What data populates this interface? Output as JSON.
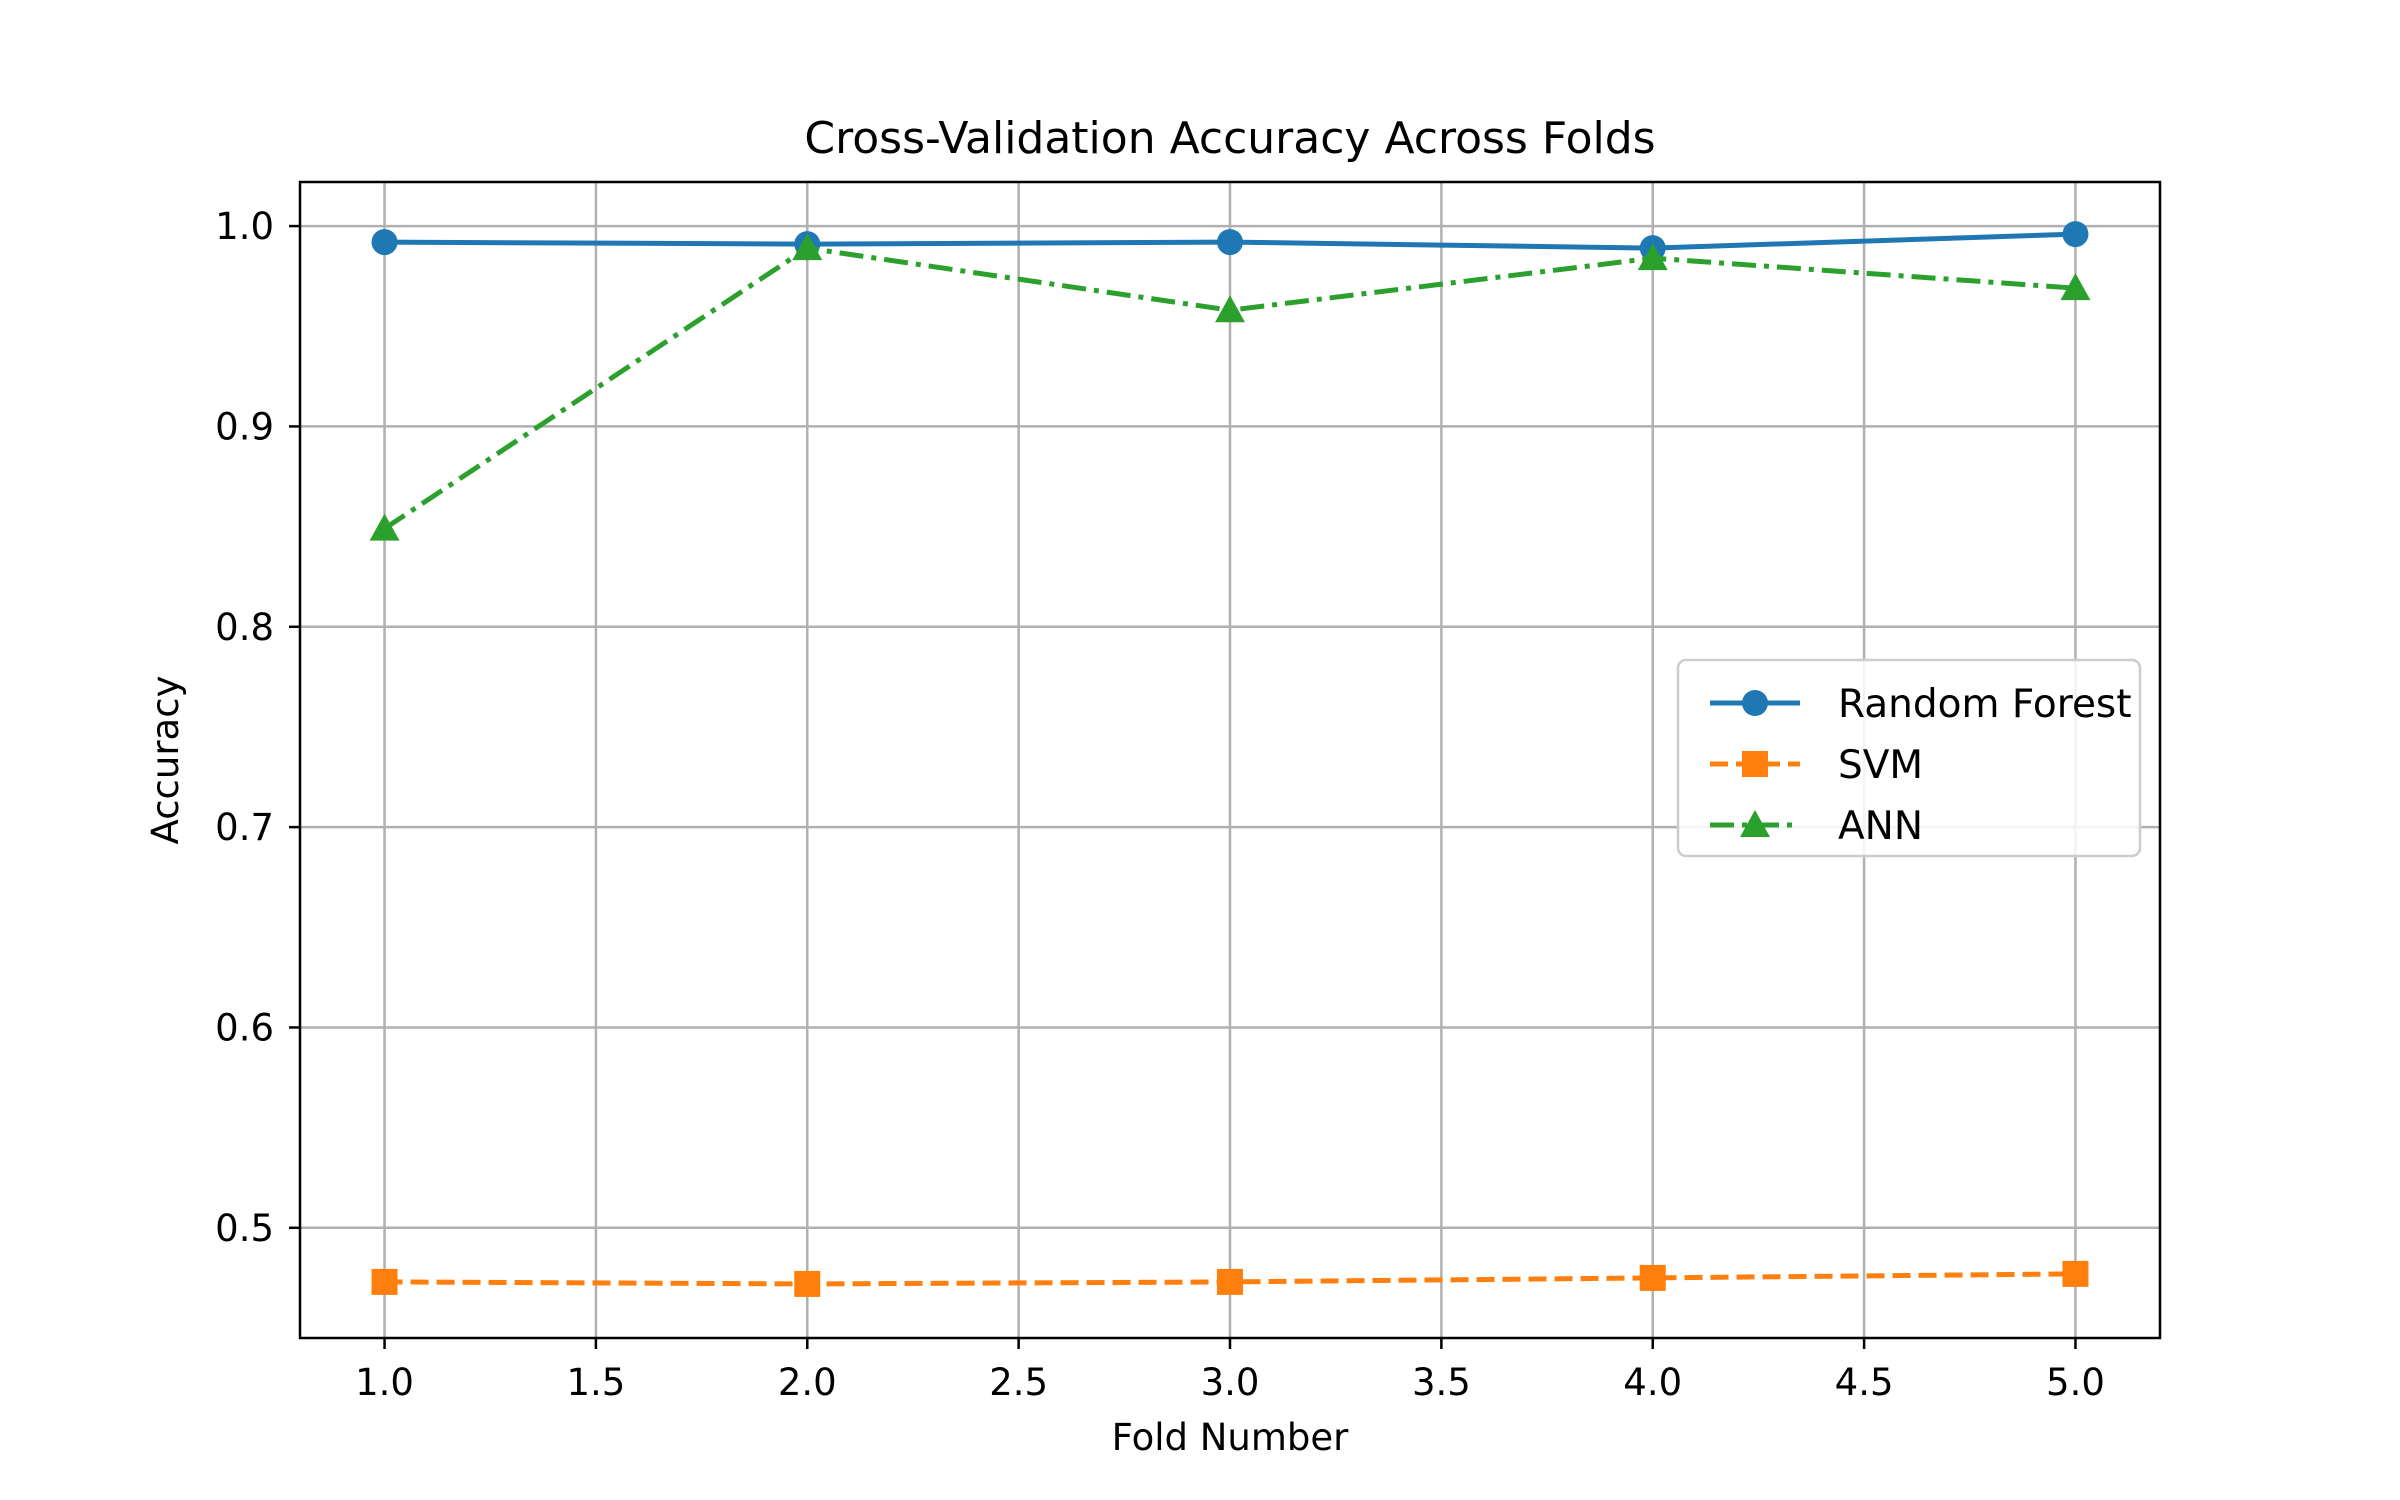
{
  "chart_data": {
    "type": "line",
    "title": "Cross-Validation Accuracy Across Folds",
    "xlabel": "Fold Number",
    "ylabel": "Accuracy",
    "xlim": [
      0.8,
      5.2
    ],
    "ylim": [
      0.445,
      1.022
    ],
    "xticks": [
      1.0,
      1.5,
      2.0,
      2.5,
      3.0,
      3.5,
      4.0,
      4.5,
      5.0
    ],
    "xtick_labels": [
      "1.0",
      "1.5",
      "2.0",
      "2.5",
      "3.0",
      "3.5",
      "4.0",
      "4.5",
      "5.0"
    ],
    "yticks": [
      0.5,
      0.6,
      0.7,
      0.8,
      0.9,
      1.0
    ],
    "ytick_labels": [
      "0.5",
      "0.6",
      "0.7",
      "0.8",
      "0.9",
      "1.0"
    ],
    "grid": true,
    "legend_position": "center-right",
    "x": [
      1,
      2,
      3,
      4,
      5
    ],
    "series": [
      {
        "name": "Random Forest",
        "values": [
          0.992,
          0.991,
          0.992,
          0.989,
          0.996
        ],
        "color": "#1f77b4",
        "marker": "circle",
        "linestyle": "solid"
      },
      {
        "name": "SVM",
        "values": [
          0.473,
          0.472,
          0.473,
          0.475,
          0.477
        ],
        "color": "#ff7f0e",
        "marker": "square",
        "linestyle": "dashed"
      },
      {
        "name": "ANN",
        "values": [
          0.849,
          0.989,
          0.958,
          0.984,
          0.969
        ],
        "color": "#2ca02c",
        "marker": "triangle",
        "linestyle": "dashdot"
      }
    ]
  }
}
